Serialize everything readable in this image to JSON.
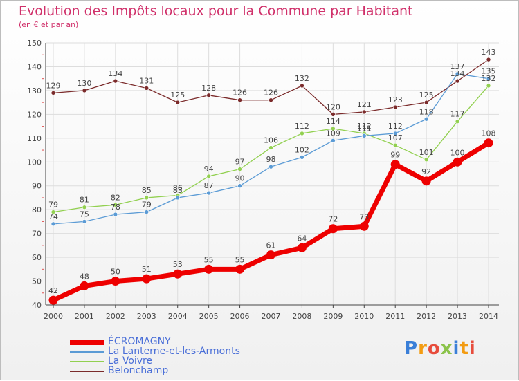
{
  "colors": {
    "title": "#d0306a",
    "axis": "#444444",
    "grid": "#dddddd",
    "legend_text": "#4a6fd8"
  },
  "chart_data": {
    "type": "line",
    "title": "Evolution des Impôts locaux pour la Commune par Habitant",
    "subtitle": "(en € et par an)",
    "xlabel": "",
    "ylabel": "",
    "ylim": [
      40,
      150
    ],
    "yticks": [
      40,
      50,
      60,
      70,
      80,
      90,
      100,
      110,
      120,
      130,
      140,
      150
    ],
    "grid": true,
    "legend_position": "bottom-left",
    "categories": [
      "2000",
      "2001",
      "2002",
      "2003",
      "2004",
      "2005",
      "2006",
      "2007",
      "2008",
      "2009",
      "2010",
      "2011",
      "2012",
      "2013",
      "2014"
    ],
    "series": [
      {
        "name": "ÉCROMAGNY",
        "color": "#ee0000",
        "values": [
          42,
          48,
          50,
          51,
          53,
          55,
          55,
          61,
          64,
          72,
          73,
          99,
          92,
          100,
          108
        ]
      },
      {
        "name": "La Lanterne-et-les-Armonts",
        "color": "#5b9bd5",
        "values": [
          74,
          75,
          78,
          79,
          85,
          87,
          90,
          98,
          102,
          109,
          111,
          112,
          118,
          137,
          135
        ]
      },
      {
        "name": "La Voivre",
        "color": "#92d050",
        "values": [
          79,
          81,
          82,
          85,
          86,
          94,
          97,
          106,
          112,
          114,
          112,
          107,
          101,
          117,
          132
        ]
      },
      {
        "name": "Belonchamp",
        "color": "#7b2b2b",
        "values": [
          129,
          130,
          134,
          131,
          125,
          128,
          126,
          126,
          132,
          120,
          121,
          123,
          125,
          134,
          143
        ]
      }
    ]
  },
  "logo": {
    "text": "Proxiti",
    "colors": [
      "#3a7fd8",
      "#f39c12",
      "#e74c3c",
      "#8bc34a",
      "#3a7fd8",
      "#f39c12",
      "#e74c3c"
    ]
  }
}
